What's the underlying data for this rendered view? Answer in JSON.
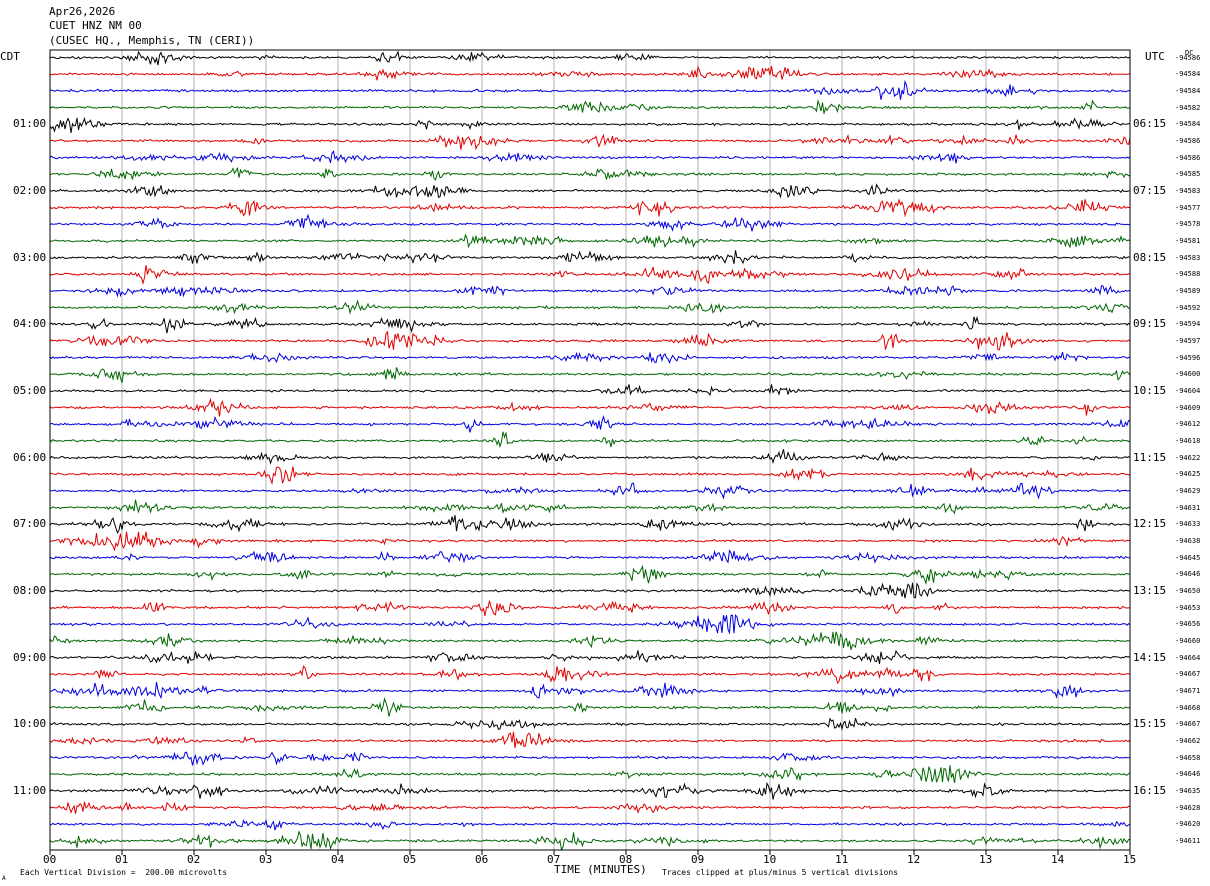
{
  "header": {
    "date": "Apr26,2026",
    "station": "CUET HNZ NM 00",
    "location": "(CUSEC HQ., Memphis, TN (CERI))"
  },
  "left_zone": "CDT",
  "right_zone": "UTC",
  "dc_label": "DC",
  "footer": {
    "scale_note": "Each Vertical Division =  200.00 microvolts",
    "clip_note": "Traces clipped at plus/minus 5 vertical divisions",
    "corner_mark": "A"
  },
  "colors": {
    "trace_cycle": [
      "#000000",
      "#e00000",
      "#0000e0",
      "#006600"
    ],
    "grid": "#808080"
  },
  "chart_data": {
    "type": "line",
    "title": "",
    "xlabel": "TIME (MINUTES)",
    "ylabel": "",
    "xlim": [
      0,
      15
    ],
    "x_ticks": [
      "00",
      "01",
      "02",
      "03",
      "04",
      "05",
      "06",
      "07",
      "08",
      "09",
      "10",
      "11",
      "12",
      "13",
      "14",
      "15"
    ],
    "grid": true,
    "rows_per_hour": 4,
    "trace_count": 48,
    "cdt_labels": [
      "01:00",
      "02:00",
      "03:00",
      "04:00",
      "05:00",
      "06:00",
      "07:00",
      "08:00",
      "09:00",
      "10:00",
      "11:00"
    ],
    "utc_labels": [
      "06:15",
      "07:15",
      "08:15",
      "09:15",
      "10:15",
      "11:15",
      "12:15",
      "13:15",
      "14:15",
      "15:15",
      "16:15"
    ],
    "dc_offsets": [
      "-94586",
      "-94584",
      "-94584",
      "-94582",
      "-94584",
      "-94586",
      "-94586",
      "-94585",
      "-94583",
      "-94577",
      "-94578",
      "-94581",
      "-94583",
      "-94588",
      "-94589",
      "-94592",
      "-94594",
      "-94597",
      "-94596",
      "-94600",
      "-94604",
      "-94609",
      "-94612",
      "-94618",
      "-94622",
      "-94625",
      "-94629",
      "-94631",
      "-94633",
      "-94638",
      "-94645",
      "-94646",
      "-94650",
      "-94653",
      "-94656",
      "-94660",
      "-94664",
      "-94667",
      "-94671",
      "-94668",
      "-94667",
      "-94662",
      "-94658",
      "-94646",
      "-94635",
      "-94628",
      "-94620",
      "-94611"
    ]
  }
}
